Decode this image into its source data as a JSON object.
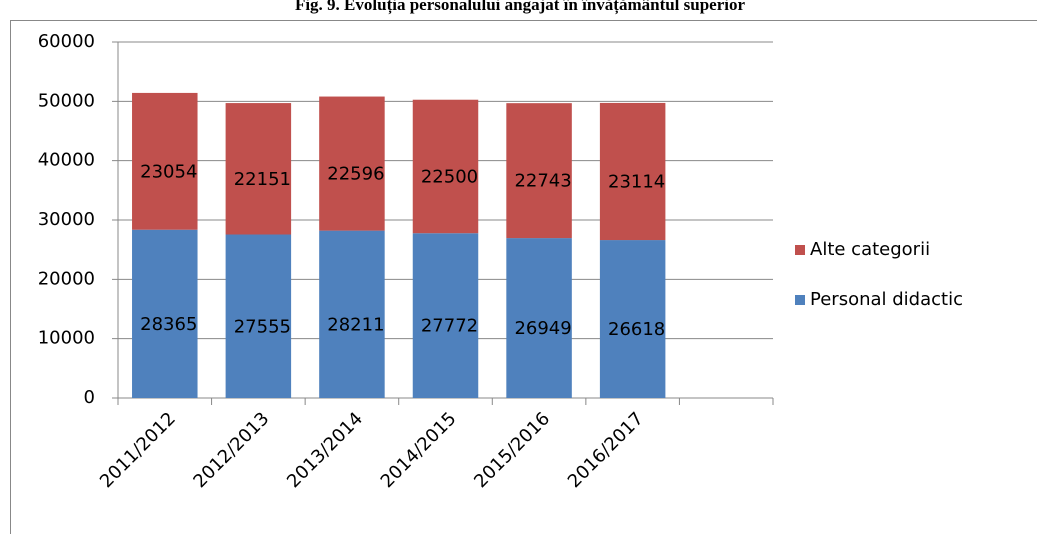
{
  "chart_data": {
    "type": "stacked_bar",
    "title": "Fig. 9. Evoluția personalului angajat în învățământul superior",
    "categories": [
      "2011/2012",
      "2012/2013",
      "2013/2014",
      "2014/2015",
      "2015/2016",
      "2016/2017",
      null
    ],
    "series": [
      {
        "name": "Personal didactic",
        "color": "#4f81bd",
        "values": [
          28365,
          27555,
          28211,
          27772,
          26949,
          26618,
          null
        ]
      },
      {
        "name": "Alte categorii",
        "color": "#c0504d",
        "values": [
          23054,
          22151,
          22596,
          22500,
          22743,
          23114,
          null
        ]
      }
    ],
    "ylim": [
      0,
      60000
    ],
    "yticks": [
      0,
      10000,
      20000,
      30000,
      40000,
      50000,
      60000
    ],
    "grid": true,
    "legend": "right",
    "data_labels": true
  }
}
